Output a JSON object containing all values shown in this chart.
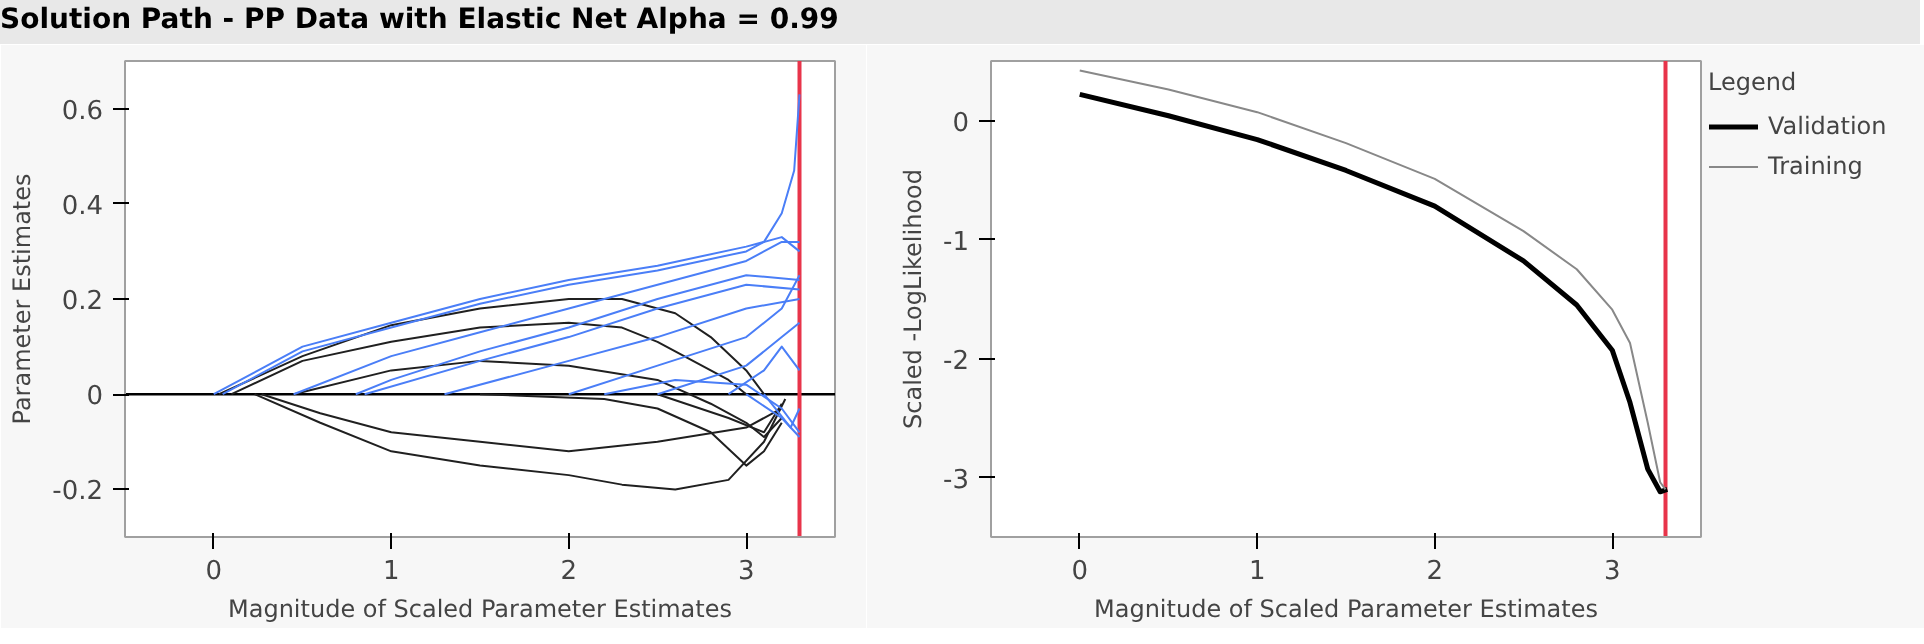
{
  "chart_data": [
    {
      "type": "line",
      "title": "Solution Path - PP Data with Elastic Net Alpha = 0.99",
      "xlabel": "Magnitude of Scaled Parameter Estimates",
      "ylabel": "Parameter Estimates",
      "xlim": [
        -0.5,
        3.5
      ],
      "ylim": [
        -0.3,
        0.7
      ],
      "xticks": [
        0,
        1,
        2,
        3
      ],
      "yticks": [
        -0.2,
        0,
        0.2,
        0.4,
        0.6
      ],
      "grid": false,
      "legend": false,
      "marker": "none",
      "ref_lines": [
        {
          "axis": "y",
          "value": 0,
          "color": "#000000"
        },
        {
          "axis": "x",
          "value": 3.3,
          "color": "#e8344a"
        }
      ],
      "series": [
        {
          "color": "#202020",
          "x": [
            0.03,
            0.5,
            1,
            1.5,
            2,
            2.3,
            2.6,
            2.8,
            3.0,
            3.1
          ],
          "values": [
            0,
            0.08,
            0.145,
            0.18,
            0.2,
            0.2,
            0.17,
            0.12,
            0.05,
            0
          ]
        },
        {
          "color": "#202020",
          "x": [
            0.1,
            0.5,
            1,
            1.5,
            2,
            2.3,
            2.5,
            2.7,
            2.9,
            3.0
          ],
          "values": [
            0,
            0.07,
            0.11,
            0.14,
            0.15,
            0.14,
            0.11,
            0.07,
            0.03,
            0
          ]
        },
        {
          "color": "#202020",
          "x": [
            0.45,
            1,
            1.5,
            2,
            2.5,
            2.8,
            3.0,
            3.1,
            3.2
          ],
          "values": [
            0,
            0.05,
            0.07,
            0.06,
            0.03,
            -0.02,
            -0.06,
            -0.09,
            -0.05
          ]
        },
        {
          "color": "#202020",
          "x": [
            0.27,
            0.6,
            1,
            1.5,
            2,
            2.5,
            3.0,
            3.2
          ],
          "values": [
            0,
            -0.04,
            -0.08,
            -0.1,
            -0.12,
            -0.1,
            -0.07,
            -0.03
          ]
        },
        {
          "color": "#202020",
          "x": [
            0.23,
            0.6,
            1,
            1.5,
            2,
            2.3,
            2.6,
            2.9,
            3.1,
            3.22
          ],
          "values": [
            0,
            -0.06,
            -0.12,
            -0.15,
            -0.17,
            -0.19,
            -0.2,
            -0.18,
            -0.1,
            -0.01
          ]
        },
        {
          "color": "#202020",
          "x": [
            1.5,
            2.2,
            2.5,
            2.8,
            3.0,
            3.1,
            3.2
          ],
          "values": [
            0,
            -0.01,
            -0.03,
            -0.08,
            -0.15,
            -0.12,
            -0.06
          ]
        },
        {
          "color": "#202020",
          "x": [
            2.5,
            2.9,
            3.1,
            3.2
          ],
          "values": [
            0,
            -0.05,
            -0.08,
            -0.02
          ]
        },
        {
          "color": "#4a7ef7",
          "x": [
            0,
            0.5,
            1,
            1.5,
            2,
            2.5,
            3.0,
            3.2,
            3.3
          ],
          "values": [
            0,
            0.1,
            0.15,
            0.2,
            0.24,
            0.27,
            0.31,
            0.33,
            0.3
          ]
        },
        {
          "color": "#4a7ef7",
          "x": [
            0.05,
            0.5,
            1,
            1.5,
            2,
            2.5,
            3.0,
            3.1,
            3.2,
            3.27,
            3.3
          ],
          "values": [
            0,
            0.09,
            0.14,
            0.19,
            0.23,
            0.26,
            0.3,
            0.32,
            0.38,
            0.47,
            0.63
          ]
        },
        {
          "color": "#4a7ef7",
          "x": [
            0.45,
            1,
            1.5,
            2,
            2.5,
            3.0,
            3.2,
            3.3
          ],
          "values": [
            0,
            0.08,
            0.13,
            0.18,
            0.23,
            0.28,
            0.32,
            0.32
          ]
        },
        {
          "color": "#4a7ef7",
          "x": [
            0.8,
            1,
            1.5,
            2,
            2.5,
            3.0,
            3.3
          ],
          "values": [
            0,
            0.03,
            0.09,
            0.14,
            0.2,
            0.25,
            0.24
          ]
        },
        {
          "color": "#4a7ef7",
          "x": [
            0.85,
            1.5,
            2,
            2.5,
            3.0,
            3.3
          ],
          "values": [
            0,
            0.07,
            0.12,
            0.18,
            0.23,
            0.22
          ]
        },
        {
          "color": "#4a7ef7",
          "x": [
            1.3,
            2,
            2.5,
            3.0,
            3.3
          ],
          "values": [
            0,
            0.07,
            0.12,
            0.18,
            0.2
          ]
        },
        {
          "color": "#4a7ef7",
          "x": [
            2.0,
            2.5,
            3.0,
            3.2,
            3.3
          ],
          "values": [
            0,
            0.06,
            0.12,
            0.18,
            0.25
          ]
        },
        {
          "color": "#4a7ef7",
          "x": [
            2.5,
            3.0,
            3.2,
            3.3
          ],
          "values": [
            0,
            0.06,
            0.12,
            0.15
          ]
        },
        {
          "color": "#4a7ef7",
          "x": [
            2.9,
            3.1,
            3.2,
            3.3
          ],
          "values": [
            0,
            0.05,
            0.1,
            0.05
          ]
        },
        {
          "color": "#4a7ef7",
          "x": [
            3.0,
            3.2,
            3.3
          ],
          "values": [
            0,
            -0.05,
            -0.09
          ]
        },
        {
          "color": "#4a7ef7",
          "x": [
            3.1,
            3.25,
            3.3
          ],
          "values": [
            0,
            -0.07,
            -0.03
          ]
        },
        {
          "color": "#4a7ef7",
          "x": [
            2.2,
            2.6,
            3.0,
            3.2,
            3.3
          ],
          "values": [
            0,
            0.03,
            0.02,
            -0.03,
            -0.08
          ]
        }
      ]
    },
    {
      "type": "line",
      "xlabel": "Magnitude of Scaled Parameter Estimates",
      "ylabel": "Scaled -LogLikelihood",
      "legend_title": "Legend",
      "legend": "right",
      "xlim": [
        -0.5,
        3.5
      ],
      "ylim": [
        -3.5,
        0.5
      ],
      "xticks": [
        0,
        1,
        2,
        3
      ],
      "yticks": [
        -3,
        -2,
        -1,
        0
      ],
      "grid": false,
      "marker": "none",
      "ref_lines": [
        {
          "axis": "x",
          "value": 3.3,
          "color": "#e8344a"
        }
      ],
      "series": [
        {
          "name": "Validation",
          "color": "#000000",
          "x": [
            0,
            0.5,
            1,
            1.5,
            2,
            2.5,
            2.8,
            3.0,
            3.1,
            3.2,
            3.27,
            3.31
          ],
          "values": [
            0.22,
            0.04,
            -0.16,
            -0.42,
            -0.72,
            -1.18,
            -1.55,
            -1.93,
            -2.37,
            -2.93,
            -3.12,
            -3.1
          ]
        },
        {
          "name": "Training",
          "color": "#888888",
          "x": [
            0,
            0.5,
            1,
            1.5,
            2,
            2.5,
            2.8,
            3.0,
            3.1,
            3.2,
            3.27,
            3.3
          ],
          "values": [
            0.42,
            0.26,
            0.07,
            -0.19,
            -0.49,
            -0.93,
            -1.25,
            -1.59,
            -1.87,
            -2.54,
            -3.04,
            -3.1
          ]
        }
      ]
    }
  ]
}
